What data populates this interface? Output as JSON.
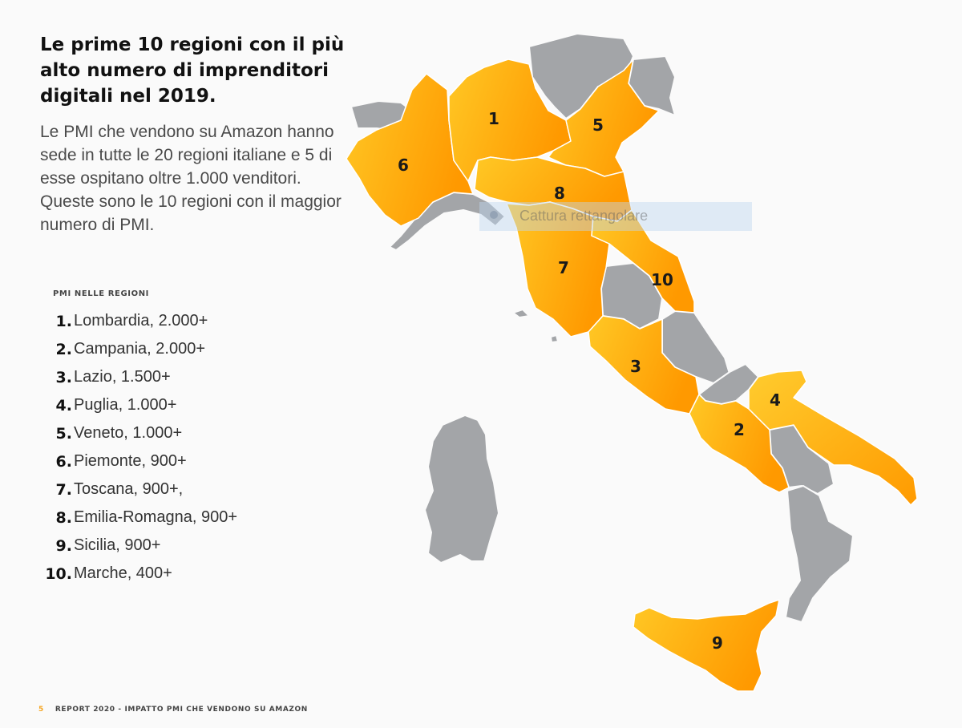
{
  "header": {
    "title": "Le prime 10 regioni con il più alto numero di imprenditori digitali nel 2019.",
    "description": "Le PMI che vendono su Amazon hanno sede in tutte le 20 regioni italiane e 5 di esse ospitano oltre 1.000 venditori. Queste sono le 10 regioni con il maggior numero di PMI."
  },
  "list": {
    "title": "PMI NELLE REGIONI",
    "items": [
      {
        "rank": "1.",
        "text": "Lombardia, 2.000+"
      },
      {
        "rank": "2.",
        "text": "Campania, 2.000+"
      },
      {
        "rank": "3.",
        "text": "Lazio, 1.500+"
      },
      {
        "rank": "4.",
        "text": "Puglia, 1.000+"
      },
      {
        "rank": "5.",
        "text": "Veneto, 1.000+"
      },
      {
        "rank": "6.",
        "text": "Piemonte, 900+"
      },
      {
        "rank": "7.",
        "text": "Toscana, 900+,"
      },
      {
        "rank": "8.",
        "text": "Emilia-Romagna, 900+"
      },
      {
        "rank": "9.",
        "text": "Sicilia, 900+"
      },
      {
        "rank": "10.",
        "text": "Marche, 400+"
      }
    ]
  },
  "map": {
    "labels": {
      "lombardia": "1",
      "campania": "2",
      "lazio": "3",
      "puglia": "4",
      "veneto": "5",
      "piemonte": "6",
      "toscana": "7",
      "emilia": "8",
      "sicilia": "9",
      "marche": "10"
    },
    "colors": {
      "highlight_light": "#ffc825",
      "highlight_dark": "#ff9900",
      "other": "#a3a5a8"
    }
  },
  "overlay": {
    "capture_label": "Cattura rettangolare"
  },
  "footer": {
    "page": "5",
    "text": "REPORT 2020 - IMPATTO PMI CHE VENDONO SU AMAZON"
  }
}
